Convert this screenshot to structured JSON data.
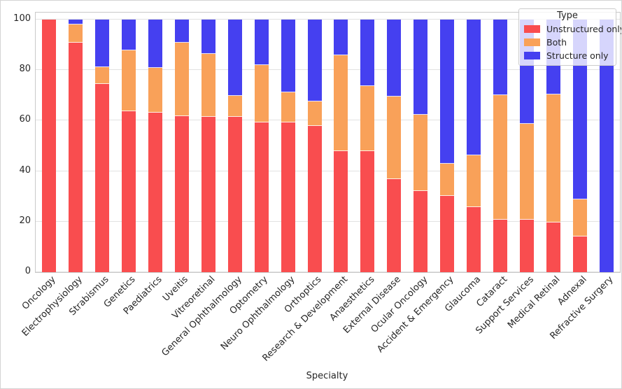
{
  "chart_data": {
    "type": "bar",
    "stacked": true,
    "orientation": "vertical",
    "title": "",
    "xlabel": "Specialty",
    "ylabel": "",
    "ylim": [
      0,
      100
    ],
    "yticks": [
      0,
      20,
      40,
      60,
      80,
      100
    ],
    "grid": "horizontal",
    "legend": {
      "title": "Type",
      "position": "upper right"
    },
    "categories": [
      "Oncology",
      "Electrophysiology",
      "Strabismus",
      "Genetics",
      "Paediatrics",
      "Uveitis",
      "Vitreoretinal",
      "General Ophthalmology",
      "Optometry",
      "Neuro Ophthalmology",
      "Orthoptics",
      "Research & Development",
      "Anaesthetics",
      "External Disease",
      "Ocular Oncology",
      "Accident & Emergency",
      "Glaucoma",
      "Cataract",
      "Support Services",
      "Medical Retinal",
      "Adnexal",
      "Refractive Surgery"
    ],
    "series": [
      {
        "name": "Unstructured only",
        "color": "#f94d4f",
        "values": [
          100,
          91,
          74.4,
          63.8,
          63.3,
          61.8,
          61.6,
          61.6,
          59.3,
          59.3,
          57.9,
          48,
          47.8,
          36.8,
          32,
          30.1,
          25.8,
          20.9,
          20.9,
          19.8,
          14,
          0
        ]
      },
      {
        "name": "Both",
        "color": "#f9a159",
        "values": [
          0,
          7,
          6.8,
          23.9,
          17.7,
          29.2,
          24.8,
          8.2,
          22.6,
          12,
          9.7,
          37.8,
          25.8,
          32.8,
          30.4,
          12.8,
          20.6,
          49.3,
          37.7,
          50.7,
          14.8,
          0
        ]
      },
      {
        "name": "Structure only",
        "color": "#4540f0",
        "values": [
          0,
          2,
          18.8,
          12.3,
          19,
          9,
          13.6,
          30.2,
          18.1,
          28.7,
          32.4,
          14.2,
          26.4,
          30.4,
          37.6,
          57.1,
          53.6,
          29.8,
          41.4,
          29.5,
          71.2,
          100
        ]
      }
    ]
  }
}
